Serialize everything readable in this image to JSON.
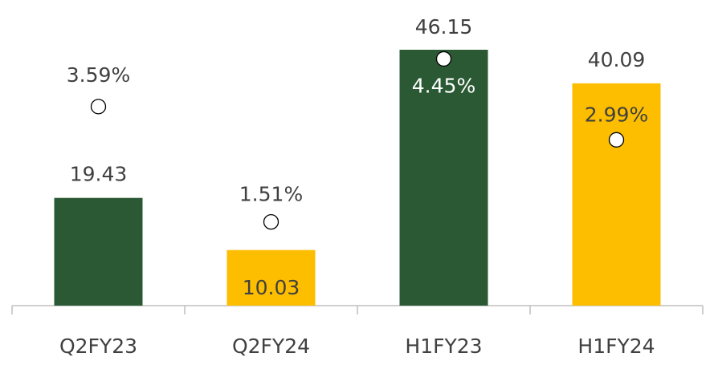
{
  "chart_data": {
    "type": "bar",
    "categories": [
      "Q2FY23",
      "Q2FY24",
      "H1FY23",
      "H1FY24"
    ],
    "ylim": [
      0,
      50
    ],
    "y2lim": [
      0,
      5
    ],
    "series": [
      {
        "type": "bar",
        "values": [
          19.43,
          10.03,
          46.15,
          40.09
        ],
        "colors": [
          "#2a5934",
          "#fdbe00",
          "#2a5934",
          "#fdbe00"
        ]
      },
      {
        "type": "scatter",
        "axis": "y2",
        "marker": "circle",
        "color": "#ffffff",
        "values": [
          3.59,
          1.51,
          4.45,
          2.99
        ],
        "value_labels": [
          "3.59%",
          "1.51%",
          "4.45%",
          "2.99%"
        ]
      }
    ]
  }
}
